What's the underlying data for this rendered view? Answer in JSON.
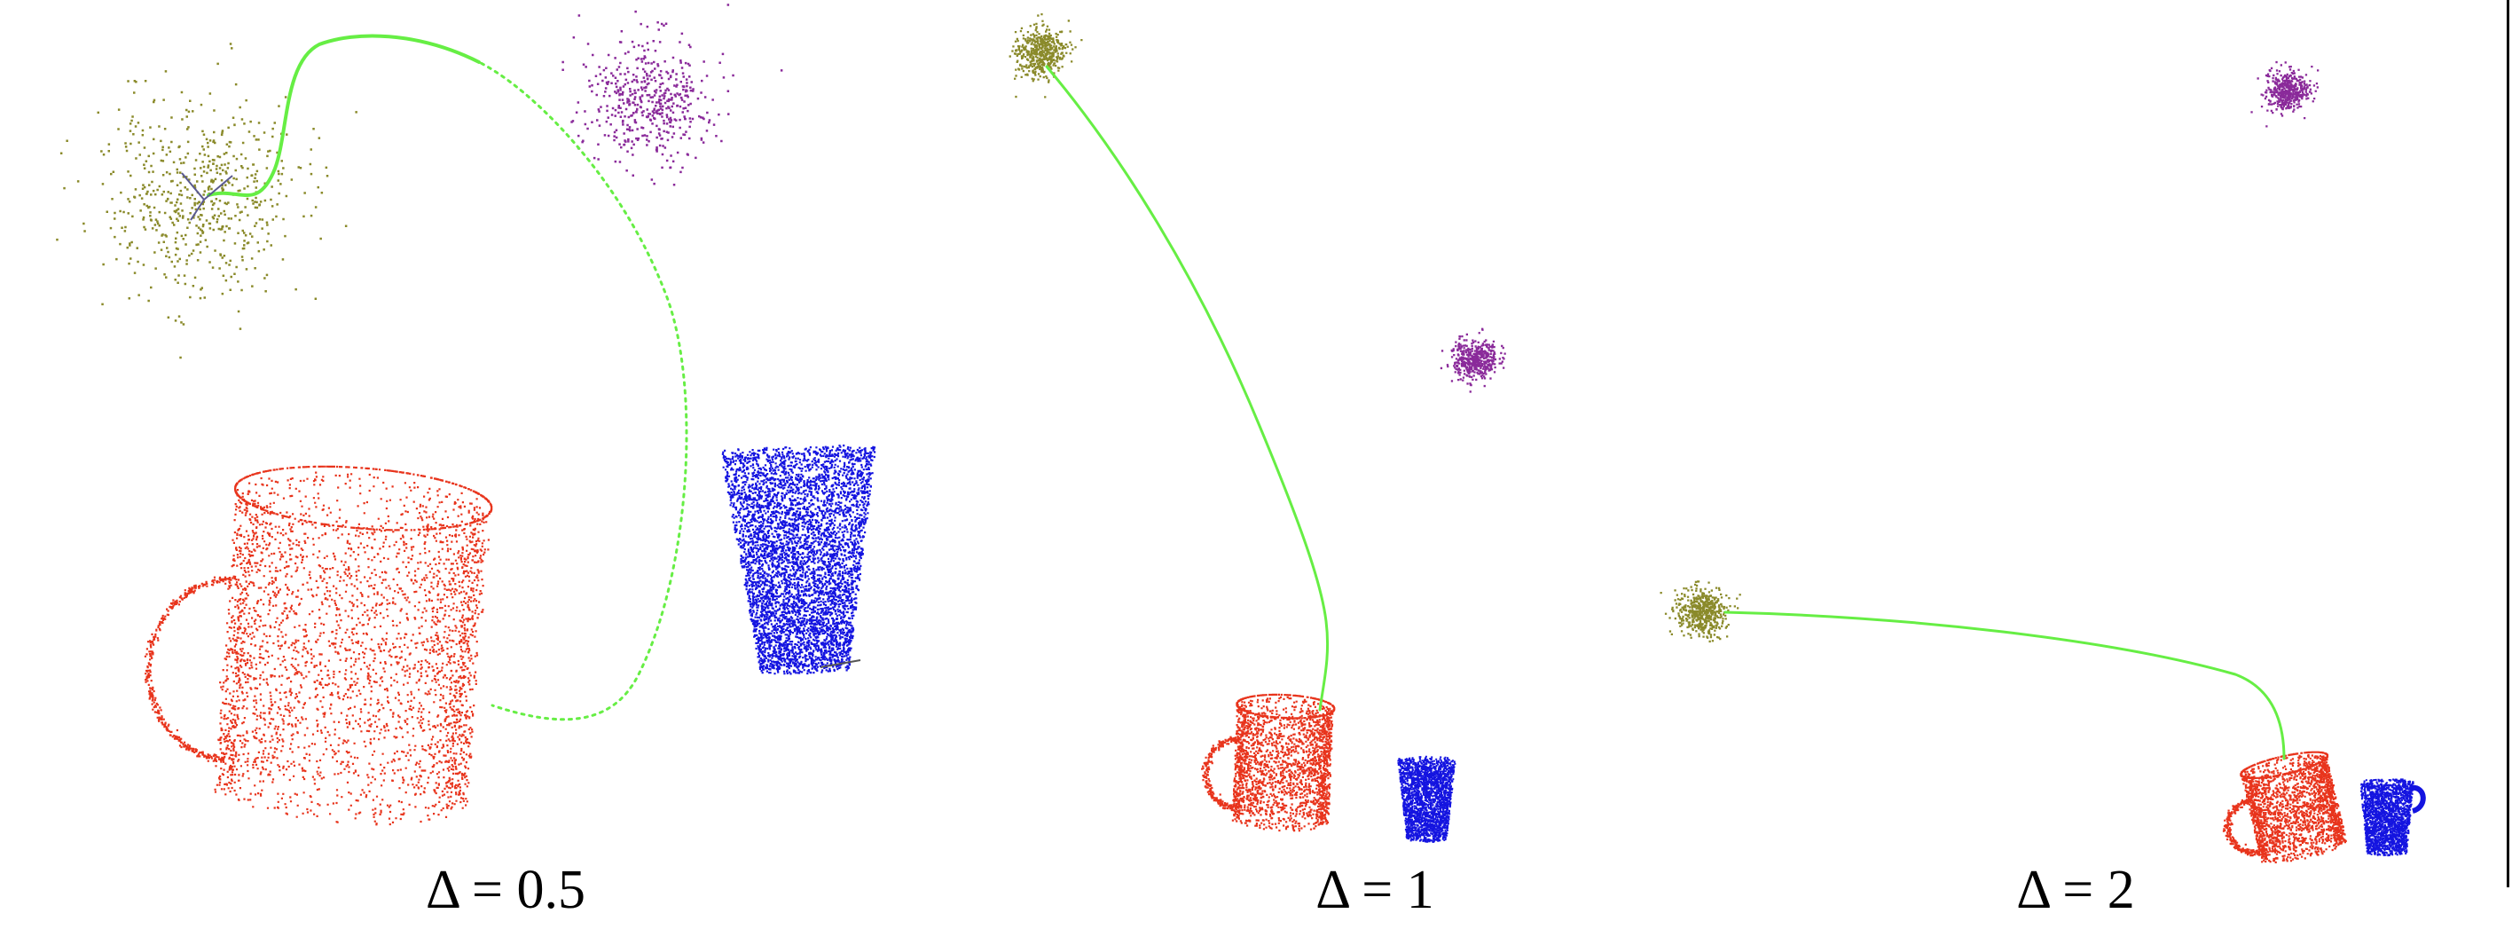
{
  "panels": [
    {
      "label": "Δ = 0.5"
    },
    {
      "label": "Δ = 1"
    },
    {
      "label": "Δ = 2"
    }
  ],
  "colors": {
    "trajectory": "#66ee44",
    "start_cloud": "#8a8a2a",
    "goal_cloud": "#8a2a9a",
    "mug": "#e8341c",
    "cup": "#1414e0",
    "divider": "#000000"
  }
}
